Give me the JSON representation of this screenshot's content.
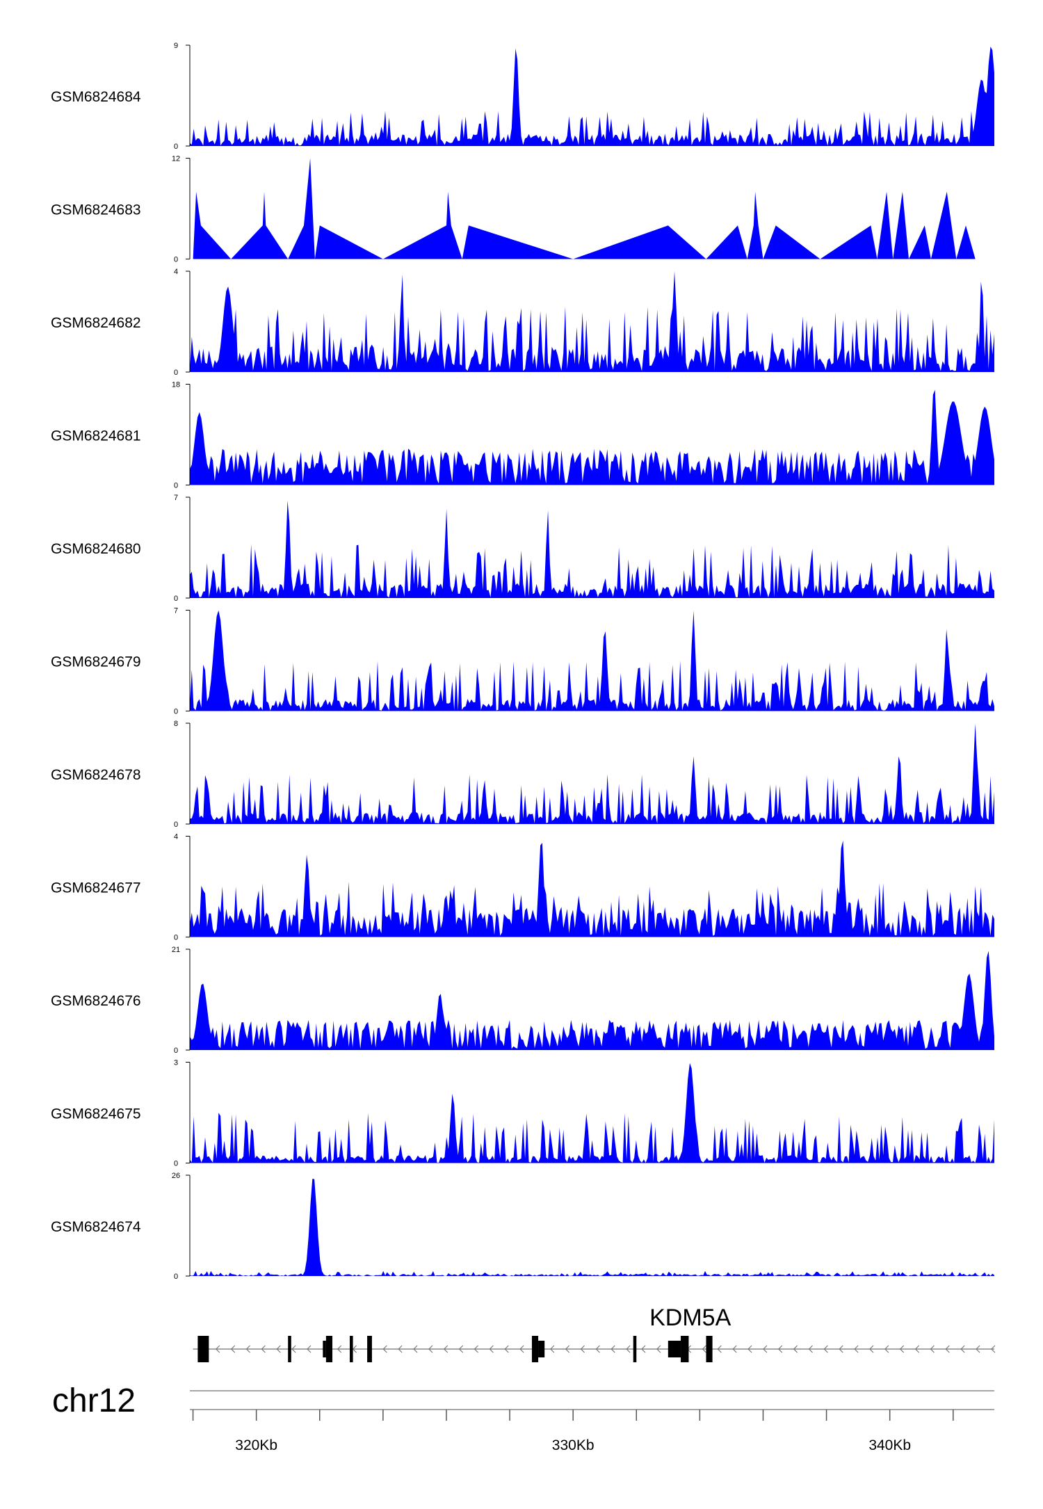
{
  "chart_data": {
    "type": "area",
    "chromosome": "chr12",
    "x_range_kb": [
      317.9,
      343.3
    ],
    "x_ticks_kb": [
      318,
      320,
      322,
      324,
      326,
      328,
      330,
      332,
      334,
      336,
      338,
      340,
      342
    ],
    "x_tick_labels": [
      {
        "kb": 320,
        "label": "320Kb"
      },
      {
        "kb": 330,
        "label": "330Kb"
      },
      {
        "kb": 340,
        "label": "340Kb"
      }
    ],
    "gene": {
      "name": "KDM5A",
      "strand": "-",
      "start_kb": 318.0,
      "end_kb": 343.3,
      "exons": [
        {
          "s": 318.15,
          "e": 318.5,
          "h": "tall"
        },
        {
          "s": 321.0,
          "e": 321.1,
          "h": "tall"
        },
        {
          "s": 322.2,
          "e": 322.4,
          "h": "tall"
        },
        {
          "s": 322.1,
          "e": 322.2,
          "h": "short"
        },
        {
          "s": 322.95,
          "e": 323.05,
          "h": "tall"
        },
        {
          "s": 323.5,
          "e": 323.65,
          "h": "tall"
        },
        {
          "s": 328.7,
          "e": 328.9,
          "h": "tall"
        },
        {
          "s": 328.9,
          "e": 329.1,
          "h": "short"
        },
        {
          "s": 331.9,
          "e": 332.0,
          "h": "tall"
        },
        {
          "s": 333.0,
          "e": 333.4,
          "h": "short"
        },
        {
          "s": 333.4,
          "e": 333.65,
          "h": "tall"
        },
        {
          "s": 334.2,
          "e": 334.4,
          "h": "tall"
        }
      ]
    },
    "tracks": [
      {
        "name": "GSM6824684",
        "ymax": 9,
        "ymin": 0,
        "seed": 11,
        "base": 0.12,
        "spike": 0.35,
        "peaks": [
          {
            "kb": 328.2,
            "v": 9,
            "w": 0.15
          },
          {
            "kb": 343.2,
            "v": 9,
            "w": 0.25
          },
          {
            "kb": 342.9,
            "v": 6,
            "w": 0.3
          }
        ]
      },
      {
        "name": "GSM6824683",
        "ymax": 12,
        "ymin": 0,
        "seed": 23,
        "base": 0.0,
        "spike": 0.0,
        "points": [
          [
            318.0,
            0
          ],
          [
            318.1,
            8
          ],
          [
            318.25,
            4
          ],
          [
            319.2,
            0
          ],
          [
            320.2,
            4
          ],
          [
            320.25,
            8
          ],
          [
            320.3,
            4
          ],
          [
            321.0,
            0
          ],
          [
            321.5,
            4
          ],
          [
            321.7,
            12
          ],
          [
            321.85,
            0
          ],
          [
            322.0,
            4
          ],
          [
            324.0,
            0
          ],
          [
            326.0,
            4
          ],
          [
            326.05,
            8
          ],
          [
            326.15,
            4
          ],
          [
            326.5,
            0
          ],
          [
            326.7,
            4
          ],
          [
            330.0,
            0
          ],
          [
            333.0,
            4
          ],
          [
            334.2,
            0
          ],
          [
            335.2,
            4
          ],
          [
            335.5,
            0
          ],
          [
            335.7,
            4
          ],
          [
            335.75,
            8
          ],
          [
            335.85,
            4
          ],
          [
            336.0,
            0
          ],
          [
            336.4,
            4
          ],
          [
            337.8,
            0
          ],
          [
            339.4,
            4
          ],
          [
            339.6,
            0
          ],
          [
            339.9,
            8
          ],
          [
            340.1,
            0
          ],
          [
            340.4,
            8
          ],
          [
            340.6,
            0
          ],
          [
            341.1,
            4
          ],
          [
            341.3,
            0
          ],
          [
            341.8,
            8
          ],
          [
            342.1,
            0
          ],
          [
            342.4,
            4
          ],
          [
            342.7,
            0
          ]
        ]
      },
      {
        "name": "GSM6824682",
        "ymax": 4,
        "ymin": 0,
        "seed": 37,
        "base": 0.25,
        "spike": 0.65,
        "peaks": [
          {
            "kb": 324.6,
            "v": 4,
            "w": 0.1
          },
          {
            "kb": 333.2,
            "v": 4,
            "w": 0.1
          },
          {
            "kb": 342.9,
            "v": 4,
            "w": 0.1
          },
          {
            "kb": 319.1,
            "v": 3.4,
            "w": 0.3
          }
        ]
      },
      {
        "name": "GSM6824681",
        "ymax": 18,
        "ymin": 0,
        "seed": 41,
        "base": 0.36,
        "spike": 0.18,
        "peaks": [
          {
            "kb": 341.4,
            "v": 18,
            "w": 0.15
          },
          {
            "kb": 342.0,
            "v": 15,
            "w": 0.5
          },
          {
            "kb": 343.0,
            "v": 14,
            "w": 0.4
          },
          {
            "kb": 318.2,
            "v": 13,
            "w": 0.3
          }
        ]
      },
      {
        "name": "GSM6824680",
        "ymax": 7,
        "ymin": 0,
        "seed": 53,
        "base": 0.15,
        "spike": 0.55,
        "peaks": [
          {
            "kb": 321.0,
            "v": 7,
            "w": 0.12
          },
          {
            "kb": 326.0,
            "v": 6.2,
            "w": 0.1
          },
          {
            "kb": 329.2,
            "v": 6.2,
            "w": 0.1
          }
        ]
      },
      {
        "name": "GSM6824679",
        "ymax": 7,
        "ymin": 0,
        "seed": 67,
        "base": 0.12,
        "spike": 0.5,
        "peaks": [
          {
            "kb": 318.8,
            "v": 7,
            "w": 0.3
          },
          {
            "kb": 333.8,
            "v": 7,
            "w": 0.12
          },
          {
            "kb": 331.0,
            "v": 5.8,
            "w": 0.15
          },
          {
            "kb": 341.8,
            "v": 5.8,
            "w": 0.12
          }
        ]
      },
      {
        "name": "GSM6824678",
        "ymax": 8,
        "ymin": 0,
        "seed": 71,
        "base": 0.12,
        "spike": 0.5,
        "peaks": [
          {
            "kb": 342.7,
            "v": 8,
            "w": 0.12
          },
          {
            "kb": 340.3,
            "v": 5.8,
            "w": 0.12
          },
          {
            "kb": 333.8,
            "v": 5.4,
            "w": 0.12
          }
        ]
      },
      {
        "name": "GSM6824677",
        "ymax": 4,
        "ymin": 0,
        "seed": 83,
        "base": 0.3,
        "spike": 0.55,
        "peaks": [
          {
            "kb": 329.0,
            "v": 4,
            "w": 0.15
          },
          {
            "kb": 338.5,
            "v": 4,
            "w": 0.15
          },
          {
            "kb": 321.6,
            "v": 3.3,
            "w": 0.15
          }
        ]
      },
      {
        "name": "GSM6824676",
        "ymax": 21,
        "ymin": 0,
        "seed": 97,
        "base": 0.3,
        "spike": 0.22,
        "peaks": [
          {
            "kb": 343.1,
            "v": 21,
            "w": 0.2
          },
          {
            "kb": 342.5,
            "v": 16,
            "w": 0.3
          },
          {
            "kb": 318.3,
            "v": 14,
            "w": 0.3
          },
          {
            "kb": 325.8,
            "v": 12,
            "w": 0.2
          }
        ]
      },
      {
        "name": "GSM6824675",
        "ymax": 3,
        "ymin": 0,
        "seed": 101,
        "base": 0.08,
        "spike": 0.5,
        "peaks": [
          {
            "kb": 333.7,
            "v": 3,
            "w": 0.25
          },
          {
            "kb": 326.2,
            "v": 2.1,
            "w": 0.15
          }
        ]
      },
      {
        "name": "GSM6824674",
        "ymax": 26,
        "ymin": 0,
        "seed": 113,
        "base": 0.02,
        "spike": 0.05,
        "peaks": [
          {
            "kb": 321.8,
            "v": 26,
            "w": 0.22
          }
        ]
      }
    ]
  }
}
